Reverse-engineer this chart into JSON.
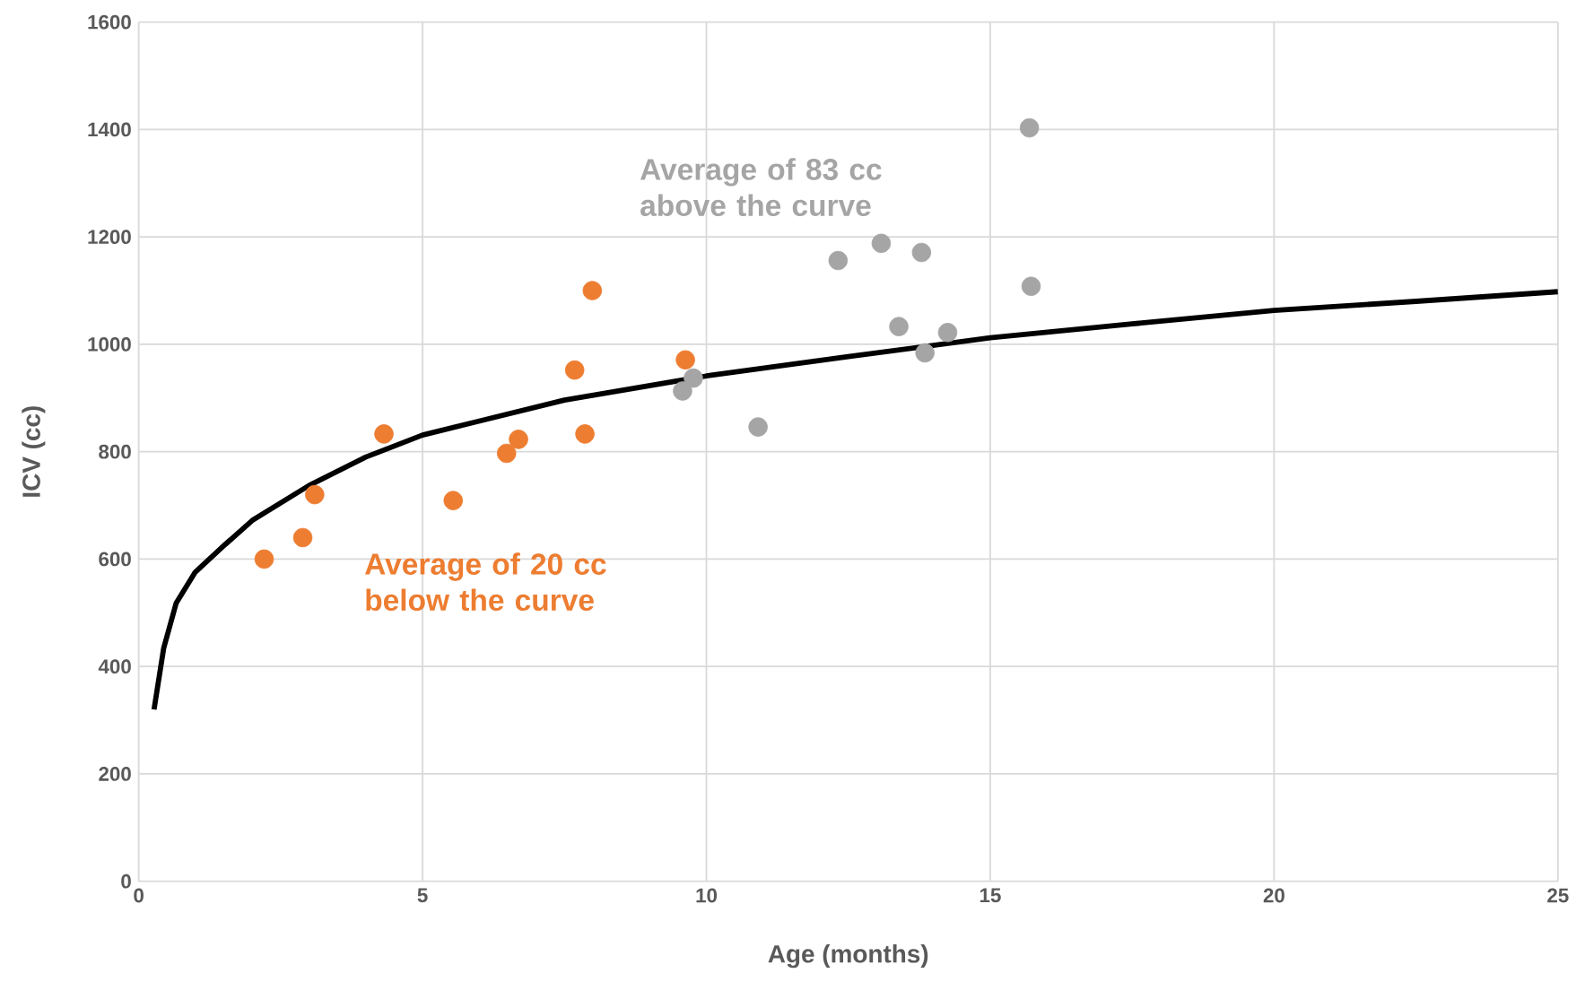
{
  "chart_data": {
    "type": "scatter",
    "xlabel": "Age (months)",
    "ylabel": "ICV (cc)",
    "xlim": [
      0,
      25
    ],
    "xticks": [
      0,
      5,
      10,
      15,
      20,
      25
    ],
    "ylim": [
      0,
      1600
    ],
    "yticks": [
      0,
      200,
      400,
      600,
      800,
      1000,
      1200,
      1400,
      1600
    ],
    "grid": true,
    "marker": "circle",
    "annotations": [
      "Average of 83 cc above the curve",
      "Average of 20 cc below the curve"
    ],
    "series": [
      {
        "type": "line",
        "color": "#000000",
        "marker": "none",
        "x": [
          0.27,
          0.44,
          0.66,
          0.99,
          1.5,
          2,
          3,
          4,
          5,
          6,
          7.5,
          10,
          12.5,
          15,
          17.5,
          20,
          22.5,
          25
        ],
        "values": [
          320,
          434,
          518,
          575,
          625,
          672,
          737,
          790,
          831,
          857,
          896,
          941,
          977,
          1012,
          1038,
          1063,
          1080,
          1098
        ]
      },
      {
        "color": "#ed7d31",
        "x": [
          2.21,
          2.89,
          3.1,
          4.32,
          5.54,
          6.48,
          6.69,
          7.68,
          7.86,
          7.99,
          9.63
        ],
        "values": [
          600,
          640,
          720,
          833,
          709,
          797,
          823,
          952,
          833,
          1100,
          971
        ]
      },
      {
        "color": "#a5a5a5",
        "x": [
          9.58,
          9.77,
          10.91,
          12.32,
          13.08,
          13.39,
          13.79,
          13.85,
          14.25,
          15.69,
          15.72
        ],
        "values": [
          913,
          937,
          846,
          1156,
          1188,
          1033,
          1171,
          984,
          1022,
          1403,
          1108
        ]
      }
    ]
  }
}
